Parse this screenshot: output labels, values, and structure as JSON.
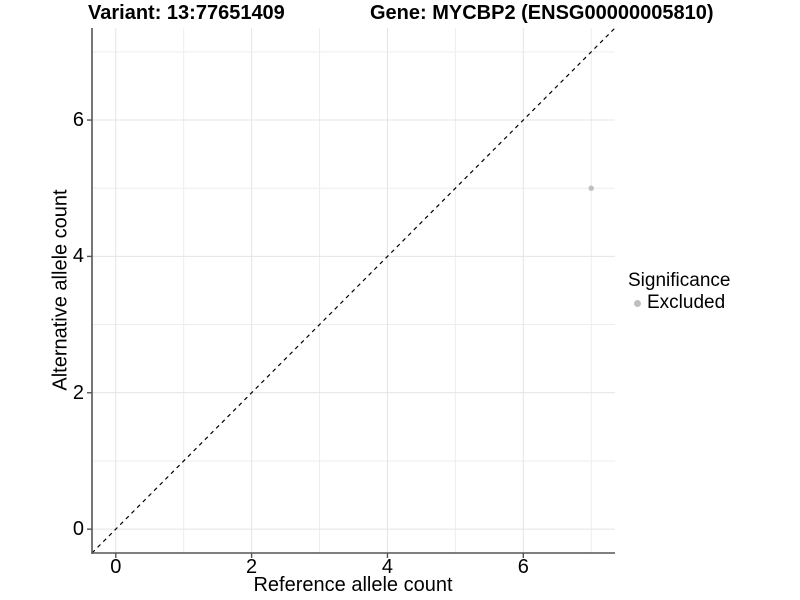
{
  "figure": {
    "background": "#ffffff"
  },
  "chart_data": {
    "type": "scatter",
    "title_left": "Variant: 13:77651409",
    "title_right": "Gene: MYCBP2 (ENSG00000005810)",
    "xlabel": "Reference allele count",
    "ylabel": "Alternative allele count",
    "xlim": [
      -0.35,
      7.35
    ],
    "ylim": [
      -0.35,
      7.35
    ],
    "x_breaks": [
      0,
      2,
      4,
      6
    ],
    "y_breaks": [
      0,
      2,
      4,
      6
    ],
    "x_minor_breaks": [
      1,
      3,
      5,
      7
    ],
    "y_minor_breaks": [
      1,
      3,
      5,
      7
    ],
    "grid": "on",
    "points": [
      {
        "x": 7,
        "y": 5,
        "significance": "Excluded"
      }
    ],
    "abline": {
      "slope": 1,
      "intercept": 0,
      "linetype": "dashed"
    },
    "legend": {
      "title": "Significance",
      "position": "right",
      "entries": [
        {
          "label": "Excluded",
          "color": "#bfbfbf"
        }
      ]
    },
    "colors": {
      "point": "#bfbfbf",
      "grid_major": "#e4e4e4",
      "grid_minor": "#ededed",
      "axis_line": "#555555",
      "tick_mark": "#555555",
      "text": "#000000",
      "abline": "#000000"
    }
  }
}
